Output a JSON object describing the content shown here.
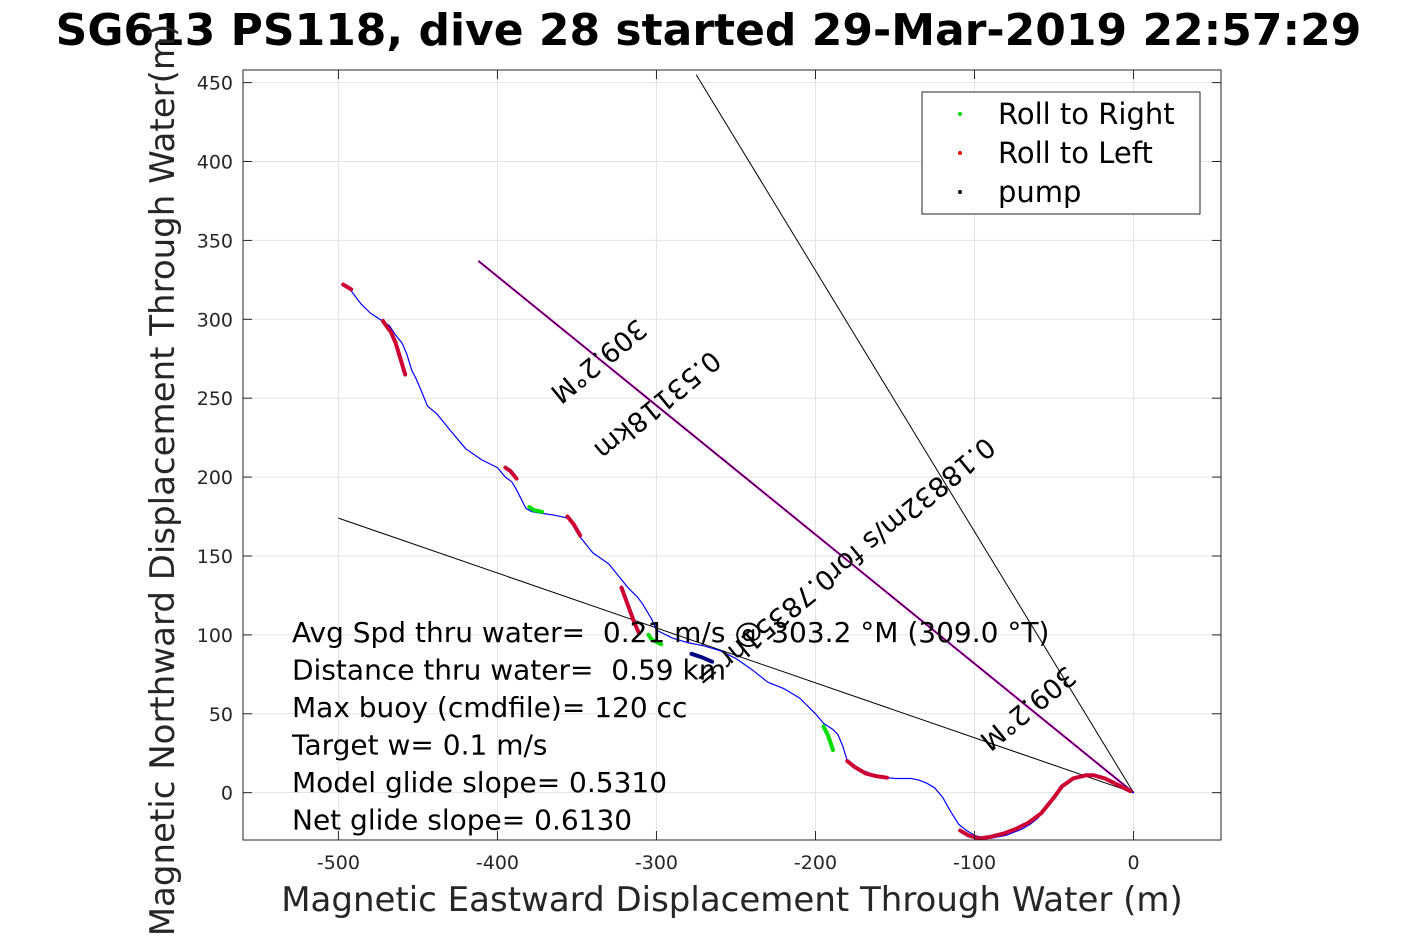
{
  "chart_data": {
    "type": "line",
    "title": "SG613 PS118, dive 28 started 29-Mar-2019 22:57:29",
    "xlabel": "Magnetic Eastward Displacement Through Water (m)",
    "ylabel": "Magnetic Northward Displacement Through Water(m)",
    "xlim": [
      -560,
      55
    ],
    "ylim": [
      -30,
      458
    ],
    "xticks": [
      -500,
      -400,
      -300,
      -200,
      -100,
      0
    ],
    "yticks": [
      0,
      50,
      100,
      150,
      200,
      250,
      300,
      350,
      400,
      450
    ],
    "grid": true,
    "legend_position": "top-right",
    "legend": [
      {
        "label": "Roll to Right",
        "color": "#00dd00"
      },
      {
        "label": "Roll to Left",
        "color": "#ff0000"
      },
      {
        "label": "pump",
        "color": "#000000"
      }
    ],
    "series": [
      {
        "name": "track",
        "color": "#0000ff",
        "x": [
          0,
          -5,
          -10,
          -15,
          -20,
          -25,
          -30,
          -35,
          -40,
          -45,
          -50,
          -55,
          -60,
          -65,
          -70,
          -75,
          -80,
          -85,
          -90,
          -95,
          -100,
          -105,
          -110,
          -115,
          -120,
          -125,
          -130,
          -135,
          -140,
          -145,
          -150,
          -155,
          -160,
          -165,
          -170,
          -175,
          -180,
          -183,
          -186,
          -189,
          -192,
          -195,
          -200,
          -210,
          -220,
          -230,
          -240,
          -250,
          -260,
          -270,
          -280,
          -290,
          -300,
          -303,
          -306,
          -309,
          -312,
          -315,
          -318,
          -322,
          -330,
          -340,
          -348,
          -352,
          -356,
          -360,
          -365,
          -372,
          -378,
          -382,
          -385,
          -388,
          -391,
          -395,
          -400,
          -410,
          -420,
          -430,
          -438,
          -444,
          -448,
          -451,
          -454,
          -457,
          -460,
          -464,
          -468,
          -474,
          -480,
          -486,
          -492,
          -497
        ],
        "y": [
          0,
          2,
          5,
          8,
          10,
          11,
          11,
          10,
          8,
          4,
          -3,
          -10,
          -16,
          -20,
          -23,
          -25,
          -27,
          -28,
          -29,
          -28.5,
          -27,
          -24,
          -20,
          -12,
          -3,
          3,
          6,
          8,
          9,
          9,
          9,
          9.5,
          10,
          12,
          14,
          16,
          20,
          30,
          37,
          40,
          42,
          44,
          50,
          60,
          66,
          70,
          78,
          85,
          90,
          93,
          95,
          98,
          103,
          110,
          115,
          120,
          124,
          127,
          130,
          135,
          145,
          152,
          162,
          170,
          174,
          175,
          176,
          177,
          178,
          180,
          186,
          192,
          197,
          200,
          206,
          211,
          218,
          230,
          240,
          245,
          255,
          262,
          268,
          278,
          285,
          290,
          296,
          300,
          304,
          310,
          318,
          322
        ]
      },
      {
        "name": "Roll to Left",
        "color": "#cc0033",
        "segments": [
          {
            "x": [
              -2,
              -10,
              -18,
              -25,
              -30,
              -38,
              -45,
              -50
            ],
            "y": [
              1,
              5,
              9,
              11,
              11,
              9,
              4,
              -3
            ]
          },
          {
            "x": [
              -50,
              -58,
              -66,
              -74,
              -82,
              -90,
              -97,
              -104,
              -109
            ],
            "y": [
              -3,
              -13,
              -19,
              -23,
              -26,
              -28,
              -29,
              -27,
              -24
            ]
          },
          {
            "x": [
              -155,
              -162,
              -168,
              -175,
              -180
            ],
            "y": [
              9.5,
              10.5,
              12,
              16,
              20
            ]
          },
          {
            "x": [
              -311,
              -314,
              -318,
              -322
            ],
            "y": [
              101,
              108,
              119,
              130
            ]
          },
          {
            "x": [
              -348,
              -352,
              -356
            ],
            "y": [
              163,
              170,
              175
            ]
          },
          {
            "x": [
              -388,
              -392,
              -395
            ],
            "y": [
              199,
              204,
              206
            ]
          },
          {
            "x": [
              -458,
              -461,
              -464,
              -467,
              -470,
              -472
            ],
            "y": [
              265,
              275,
              285,
              292,
              296,
              299
            ]
          },
          {
            "x": [
              -492,
              -497
            ],
            "y": [
              319,
              322
            ]
          }
        ]
      },
      {
        "name": "Roll to Right",
        "color": "#00dd00",
        "segments": [
          {
            "x": [
              -189,
              -192,
              -195
            ],
            "y": [
              27,
              36,
              42
            ]
          },
          {
            "x": [
              -372,
              -377,
              -380
            ],
            "y": [
              178,
              179,
              181
            ]
          },
          {
            "x": [
              -297,
              -303,
              -305
            ],
            "y": [
              94,
              97,
              100
            ]
          }
        ]
      },
      {
        "name": "pump",
        "color": "#000080",
        "segments": [
          {
            "x": [
              -265,
              -272,
              -278
            ],
            "y": [
              83,
              86,
              88
            ]
          }
        ]
      }
    ],
    "lines": [
      {
        "name": "heading-line",
        "color": "#ff00ff",
        "x": [
          0,
          -412
        ],
        "y": [
          0,
          337
        ]
      },
      {
        "name": "heading-line-black",
        "color": "#000000",
        "x": [
          0,
          -412
        ],
        "y": [
          0,
          337
        ]
      },
      {
        "name": "bound-line-upper",
        "color": "#000000",
        "x": [
          0,
          -275
        ],
        "y": [
          0,
          455
        ]
      },
      {
        "name": "bound-line-lower",
        "color": "#000000",
        "x": [
          0,
          -500
        ],
        "y": [
          0,
          174
        ]
      }
    ],
    "rotated_labels": [
      {
        "text": "309.2°M",
        "x": -340,
        "y": 278,
        "angle": 140.6
      },
      {
        "text": "0.53118km",
        "x": -303,
        "y": 250,
        "angle": 140.6
      },
      {
        "text": "0.18832m/s for0.78351hr =",
        "x": -185,
        "y": 150,
        "angle": 140.6
      },
      {
        "text": "309.2°M",
        "x": -70,
        "y": 58,
        "angle": 140.6
      }
    ],
    "annotations": [
      "Avg Spd thru water=  0.21 m/s @ 303.2 °M (309.0 °T)",
      "Distance thru water=  0.59 km",
      "Max buoy (cmdfile)= 120 cc",
      "Target w= 0.1 m/s",
      "Model glide slope= 0.5310",
      "Net glide slope= 0.6130"
    ]
  }
}
